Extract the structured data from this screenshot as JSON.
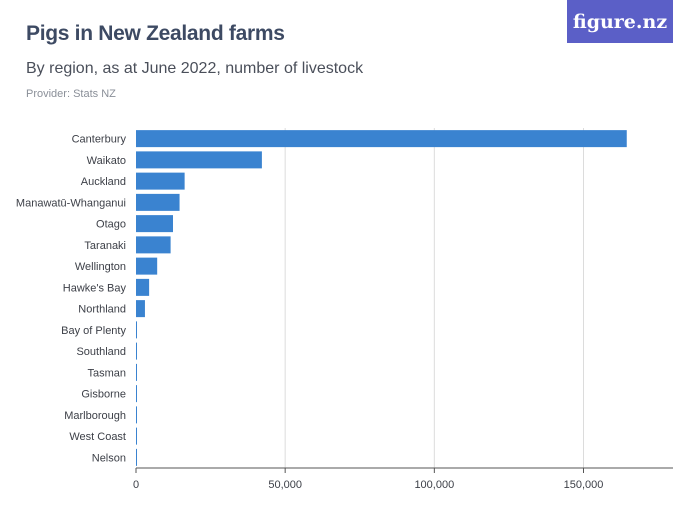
{
  "header": {
    "title": "Pigs in New Zealand farms",
    "subtitle": "By region, as at June 2022, number of livestock",
    "provider": "Provider: Stats NZ",
    "logo_text": "figure.nz"
  },
  "colors": {
    "bar": "#3a83d0",
    "logo_bg": "#5b5fc7",
    "grid": "#dcdcdc"
  },
  "chart_data": {
    "type": "bar",
    "orientation": "horizontal",
    "categories": [
      "Canterbury",
      "Waikato",
      "Auckland",
      "Manawatū-Whanganui",
      "Otago",
      "Taranaki",
      "Wellington",
      "Hawke's Bay",
      "Northland",
      "Bay of Plenty",
      "Southland",
      "Tasman",
      "Gisborne",
      "Marlborough",
      "West Coast",
      "Nelson"
    ],
    "values": [
      164500,
      42200,
      16300,
      14600,
      12400,
      11600,
      7100,
      4400,
      3000,
      300,
      200,
      100,
      80,
      60,
      40,
      10
    ],
    "xlim": [
      0,
      180000
    ],
    "xticks": [
      0,
      50000,
      100000,
      150000
    ],
    "xtick_labels": [
      "0",
      "50,000",
      "100,000",
      "150,000"
    ],
    "grid": true
  }
}
